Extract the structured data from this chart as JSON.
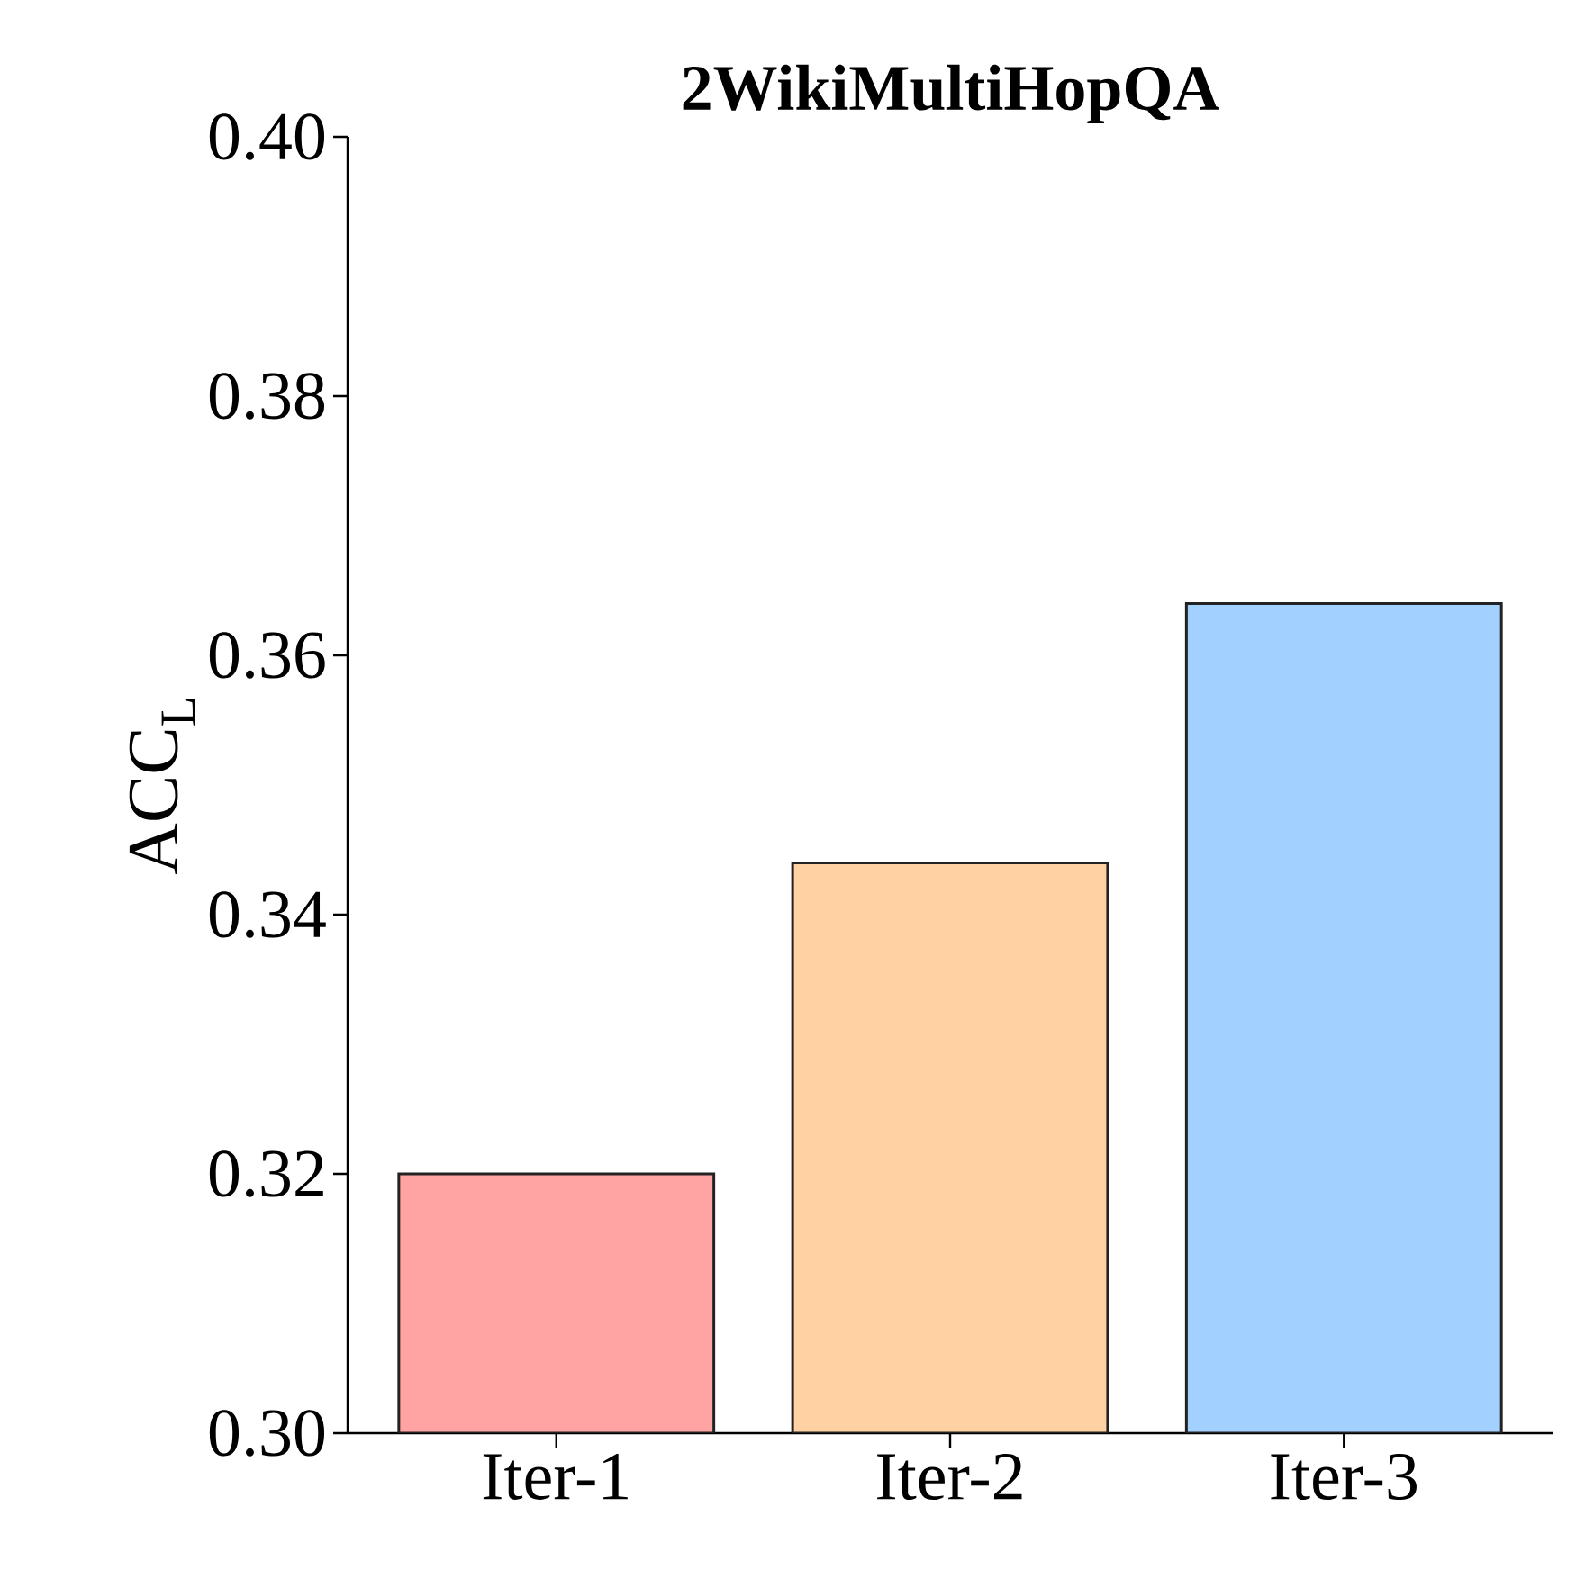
{
  "chart_data": {
    "type": "bar",
    "title": "2WikiMultiHopQA",
    "ylabel": "ACC$_{L}$",
    "categories": [
      "Iter-1",
      "Iter-2",
      "Iter-3"
    ],
    "values": [
      0.32,
      0.344,
      0.364
    ],
    "colors": [
      "#ffa3a3",
      "#ffd1a3",
      "#a3d1ff"
    ],
    "ylim": [
      0.3,
      0.4
    ],
    "yticks": [
      {
        "value": 0.3,
        "label": "0.30"
      },
      0.32,
      0.34,
      0.36,
      0.38,
      {
        "value": 0.4,
        "label": "0.40"
      }
    ],
    "grid": false
  }
}
